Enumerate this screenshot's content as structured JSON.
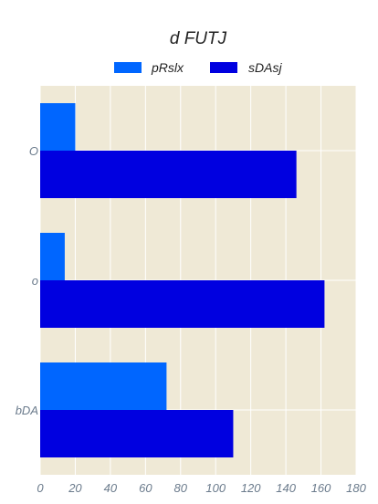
{
  "chart_data": {
    "type": "bar",
    "orientation": "horizontal",
    "title": "d FUTJ",
    "xlabel": "",
    "ylabel": "",
    "categories": [
      "O",
      "o",
      "bDA"
    ],
    "series": [
      {
        "name": "pRslx",
        "values": [
          20,
          14,
          72
        ],
        "color": "#0066ff"
      },
      {
        "name": "sDAsj",
        "values": [
          146,
          162,
          110
        ],
        "color": "#0000e0"
      }
    ],
    "xlim": [
      0,
      180
    ],
    "xticks": [
      0,
      20,
      40,
      60,
      80,
      100,
      120,
      140,
      160,
      180
    ],
    "grid": true,
    "legend_position": "top-center",
    "plot_background": "#efe9d6",
    "grid_color": "#ffffff"
  }
}
